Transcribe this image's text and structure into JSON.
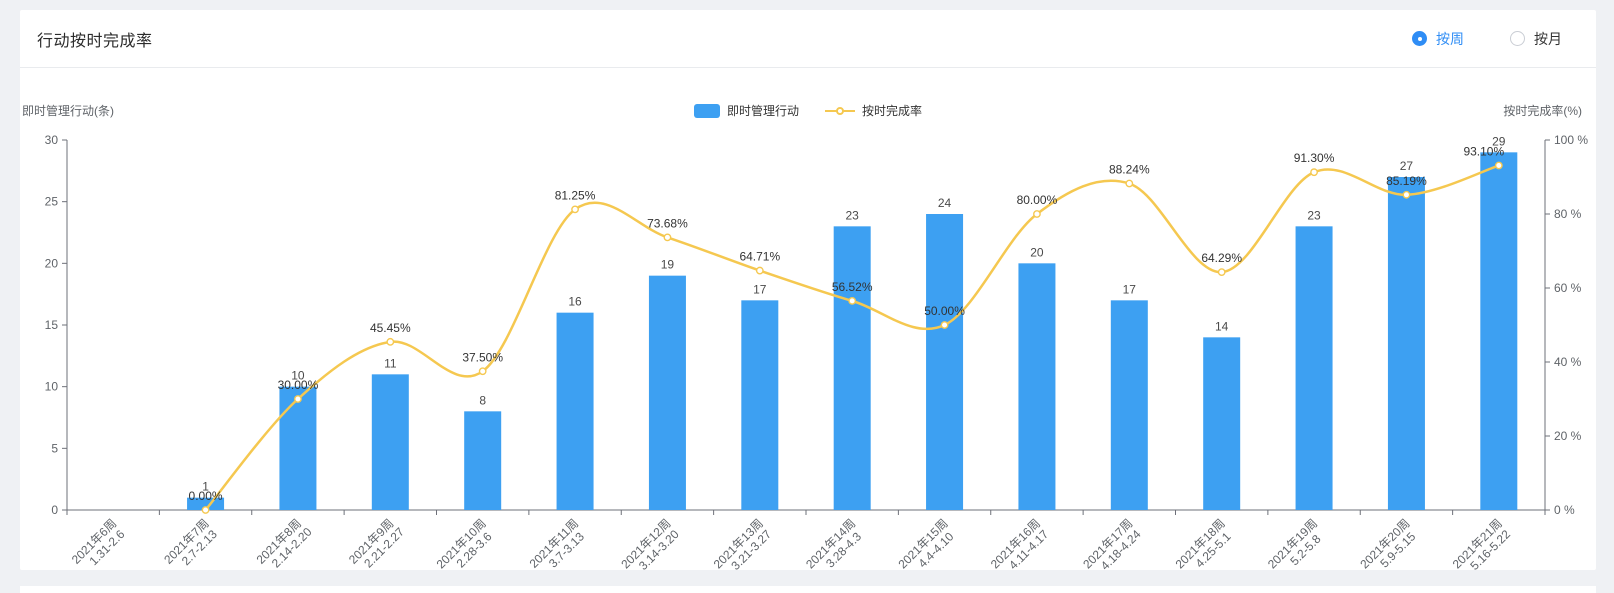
{
  "header": {
    "title": "行动按时完成率",
    "view_toggle": {
      "accent_color": "#2F8DF5",
      "options": [
        {
          "label": "按周",
          "selected": true
        },
        {
          "label": "按月",
          "selected": false
        }
      ]
    }
  },
  "chart_data": {
    "type": "bar+line",
    "title": "行动按时完成率",
    "legend_position": "top-center",
    "grid_lines": false,
    "legend": [
      {
        "name": "即时管理行动",
        "type": "bar"
      },
      {
        "name": "按时完成率",
        "type": "line"
      }
    ],
    "x_categories": [
      [
        "2021年6周",
        "1.31-2.6"
      ],
      [
        "2021年7周",
        "2.7-2.13"
      ],
      [
        "2021年8周",
        "2.14-2.20"
      ],
      [
        "2021年9周",
        "2.21-2.27"
      ],
      [
        "2021年10周",
        "2.28-3.6"
      ],
      [
        "2021年11周",
        "3.7-3.13"
      ],
      [
        "2021年12周",
        "3.14-3.20"
      ],
      [
        "2021年13周",
        "3.21-3.27"
      ],
      [
        "2021年14周",
        "3.28-4.3"
      ],
      [
        "2021年15周",
        "4.4-4.10"
      ],
      [
        "2021年16周",
        "4.11-4.17"
      ],
      [
        "2021年17周",
        "4.18-4.24"
      ],
      [
        "2021年18周",
        "4.25-5.1"
      ],
      [
        "2021年19周",
        "5.2-5.8"
      ],
      [
        "2021年20周",
        "5.9-5.15"
      ],
      [
        "2021年21周",
        "5.16-5.22"
      ]
    ],
    "y_left": {
      "name": "即时管理行动(条)",
      "min": 0,
      "max": 30,
      "interval": 5,
      "tick_labels": [
        "0",
        "5",
        "10",
        "15",
        "20",
        "25",
        "30"
      ]
    },
    "y_right": {
      "name": "按时完成率(%)",
      "min": 0,
      "max": 100,
      "interval": 20,
      "tick_labels": [
        "0 %",
        "20 %",
        "40 %",
        "60 %",
        "80 %",
        "100 %"
      ]
    },
    "bar_series": {
      "name": "即时管理行动",
      "color": "#3DA0F2",
      "values": [
        null,
        1,
        10,
        11,
        8,
        16,
        19,
        17,
        23,
        24,
        20,
        17,
        14,
        23,
        27,
        29
      ]
    },
    "line_series": {
      "name": "按时完成率",
      "color": "#F5C850",
      "values": [
        null,
        0,
        30,
        45.45,
        37.5,
        81.25,
        73.68,
        64.71,
        56.52,
        50,
        80,
        88.24,
        64.29,
        91.3,
        85.19,
        93.1
      ],
      "point_labels": [
        null,
        "0.00%",
        "30.00%",
        "45.45%",
        "37.50%",
        "81.25%",
        "73.68%",
        "64.71%",
        "56.52%",
        "50.00%",
        "80.00%",
        "88.24%",
        "64.29%",
        "91.30%",
        "85.19%",
        "93.10%"
      ]
    }
  }
}
